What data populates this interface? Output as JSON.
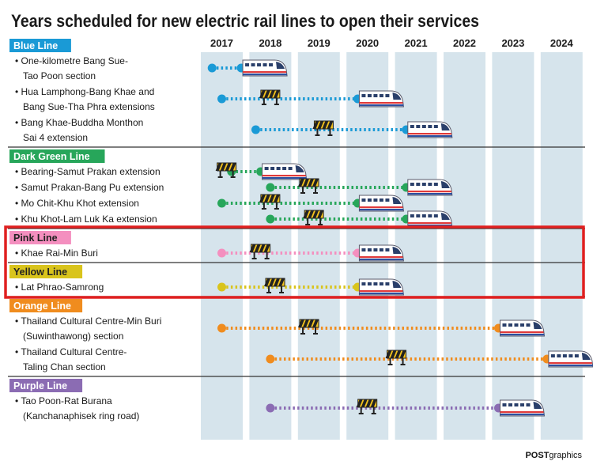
{
  "chart_data": {
    "type": "gantt",
    "title": "Years scheduled for new electric rail lines to open their services",
    "years": [
      "2017",
      "2018",
      "2019",
      "2020",
      "2021",
      "2022",
      "2023",
      "2024"
    ],
    "groups": [
      {
        "name": "Blue Line",
        "color": "#1a9ad6",
        "label_text_color": "#ffffff",
        "items": [
          {
            "label": [
              "• One-kilometre Bang Sue-",
              "Tao Poon section"
            ],
            "start": 2016.8,
            "end": 2017.4,
            "roadblock": null
          },
          {
            "label": [
              "• Hua Lamphong-Bang Khae and",
              "Bang Sue-Tha Phra extensions"
            ],
            "start": 2017.0,
            "end": 2019.8,
            "roadblock": 2018.0
          },
          {
            "label": [
              "• Bang Khae-Buddha Monthon",
              "Sai 4 extension"
            ],
            "start": 2017.7,
            "end": 2020.8,
            "roadblock": 2019.1
          }
        ]
      },
      {
        "name": "Dark Green Line",
        "color": "#27a65a",
        "label_text_color": "#ffffff",
        "items": [
          {
            "label": [
              "• Bearing-Samut Prakan extension"
            ],
            "start": 2017.2,
            "end": 2017.8,
            "roadblock": 2017.1
          },
          {
            "label": [
              "• Samut Prakan-Bang Pu extension"
            ],
            "start": 2018.0,
            "end": 2020.8,
            "roadblock": 2018.8
          },
          {
            "label": [
              "• Mo Chit-Khu Khot extension"
            ],
            "start": 2017.0,
            "end": 2019.8,
            "roadblock": 2018.0
          },
          {
            "label": [
              "• Khu Khot-Lam Luk Ka extension"
            ],
            "start": 2018.0,
            "end": 2020.8,
            "roadblock": 2018.9
          }
        ]
      },
      {
        "name": "Pink Line",
        "color": "#f48fbf",
        "label_text_color": "#222222",
        "items": [
          {
            "label": [
              "• Khae Rai-Min Buri"
            ],
            "start": 2017.0,
            "end": 2019.8,
            "roadblock": 2017.8
          }
        ]
      },
      {
        "name": "Yellow Line",
        "color": "#d9c41c",
        "label_text_color": "#222222",
        "items": [
          {
            "label": [
              "• Lat Phrao-Samrong"
            ],
            "start": 2017.0,
            "end": 2019.8,
            "roadblock": 2018.1
          }
        ]
      },
      {
        "name": "Orange Line",
        "color": "#f08c1e",
        "label_text_color": "#ffffff",
        "items": [
          {
            "label": [
              "• Thailand Cultural Centre-Min Buri",
              "(Suwinthawong) section"
            ],
            "start": 2017.0,
            "end": 2022.7,
            "roadblock": 2018.8
          },
          {
            "label": [
              "• Thailand Cultural Centre-",
              "Taling Chan section"
            ],
            "start": 2018.0,
            "end": 2023.7,
            "roadblock": 2020.6
          }
        ]
      },
      {
        "name": "Purple Line",
        "color": "#8b6cb3",
        "label_text_color": "#ffffff",
        "items": [
          {
            "label": [
              "• Tao Poon-Rat Burana",
              "(Kanchanaphisek ring road)"
            ],
            "start": 2018.0,
            "end": 2022.7,
            "roadblock": 2020.0
          }
        ]
      }
    ],
    "highlighted_groups": [
      "Pink Line",
      "Yellow Line"
    ],
    "highlight_color": "#e02020",
    "column_color": "#d6e4ec",
    "credit_bold": "POST",
    "credit_regular": "graphics"
  }
}
